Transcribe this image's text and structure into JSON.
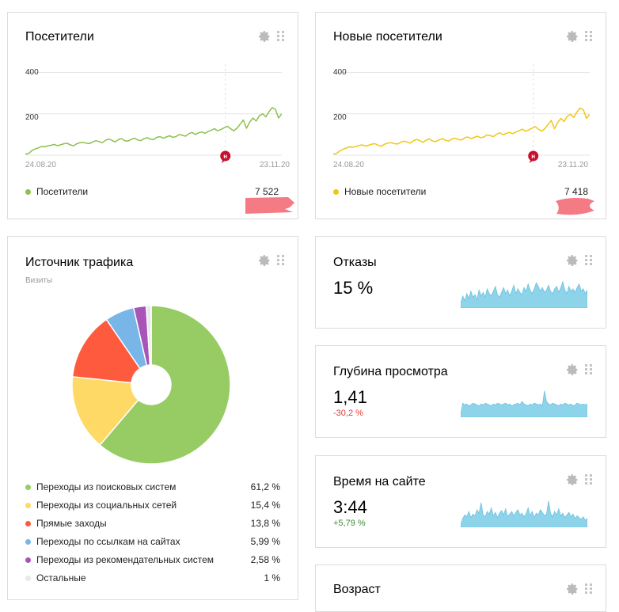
{
  "colors": {
    "green": "#8dc04e",
    "yellow": "#f2c713",
    "sparkline": "#8dd3ea",
    "red_marker": "#c8102e",
    "delta_negative": "#e03c3c",
    "delta_positive": "#3a8d3a",
    "pink_scribble": "#f47a84"
  },
  "icons": {
    "settings": "gear-icon",
    "drag": "drag-handle-icon"
  },
  "visitors": {
    "title": "Посетители",
    "y_ticks": [
      "400",
      "200"
    ],
    "x_start": "24.08.20",
    "x_end": "23.11.20",
    "marker": "н",
    "legend": "Посетители",
    "total": "7 522"
  },
  "new_visitors": {
    "title": "Новые посетители",
    "y_ticks": [
      "400",
      "200"
    ],
    "x_start": "24.08.20",
    "x_end": "23.11.20",
    "marker": "н",
    "legend": "Новые посетители",
    "total": "7 418"
  },
  "traffic": {
    "title": "Источник трафика",
    "subtitle": "Визиты",
    "rows": [
      {
        "label": "Переходы из поисковых систем",
        "value": "61,2 %",
        "color": "#97cc64"
      },
      {
        "label": "Переходы из социальных сетей",
        "value": "15,4 %",
        "color": "#ffd966"
      },
      {
        "label": "Прямые заходы",
        "value": "13,8 %",
        "color": "#fd5a3e"
      },
      {
        "label": "Переходы по ссылкам на сайтах",
        "value": "5,99 %",
        "color": "#77b6e7"
      },
      {
        "label": "Переходы из рекомендательных систем",
        "value": "2,58 %",
        "color": "#a955b8"
      },
      {
        "label": "Остальные",
        "value": "1 %",
        "color": "#e9e9e9"
      }
    ]
  },
  "bounce": {
    "title": "Отказы",
    "value": "15 %"
  },
  "depth": {
    "title": "Глубина просмотра",
    "value": "1,41",
    "delta": "-30,2 %"
  },
  "time": {
    "title": "Время на сайте",
    "value": "3:44",
    "delta": "+5,79 %"
  },
  "age": {
    "title": "Возраст"
  },
  "chart_data": [
    {
      "type": "line",
      "title": "Посетители",
      "series": [
        {
          "name": "Посетители",
          "values": [
            5,
            8,
            22,
            30,
            35,
            42,
            40,
            45,
            48,
            52,
            46,
            50,
            55,
            58,
            50,
            45,
            55,
            60,
            62,
            58,
            56,
            64,
            70,
            66,
            60,
            72,
            78,
            72,
            64,
            75,
            80,
            70,
            68,
            76,
            82,
            74,
            70,
            80,
            84,
            78,
            75,
            86,
            90,
            82,
            88,
            94,
            86,
            90,
            100,
            96,
            92,
            104,
            110,
            100,
            108,
            112,
            106,
            114,
            120,
            128,
            118,
            124,
            132,
            140,
            128,
            118,
            130,
            150,
            170,
            130,
            160,
            180,
            165,
            190,
            200,
            185,
            210,
            230,
            222,
            180,
            200
          ]
        }
      ],
      "ylim": [
        0,
        440
      ],
      "y_ticks": [
        200,
        400
      ],
      "x_start": "24.08.20",
      "x_end": "23.11.20"
    },
    {
      "type": "line",
      "title": "Новые посетители",
      "series": [
        {
          "name": "Новые посетители",
          "values": [
            5,
            8,
            20,
            28,
            34,
            40,
            38,
            43,
            46,
            50,
            44,
            48,
            53,
            56,
            48,
            43,
            53,
            58,
            60,
            56,
            54,
            62,
            68,
            64,
            58,
            70,
            76,
            70,
            62,
            73,
            78,
            68,
            66,
            74,
            80,
            72,
            68,
            78,
            82,
            76,
            73,
            84,
            88,
            80,
            86,
            92,
            84,
            88,
            98,
            94,
            90,
            102,
            108,
            98,
            106,
            110,
            104,
            112,
            118,
            126,
            116,
            122,
            130,
            138,
            126,
            116,
            128,
            148,
            168,
            128,
            158,
            178,
            163,
            188,
            198,
            183,
            208,
            228,
            220,
            178,
            198
          ]
        }
      ],
      "ylim": [
        0,
        440
      ],
      "y_ticks": [
        200,
        400
      ],
      "x_start": "24.08.20",
      "x_end": "23.11.20"
    },
    {
      "type": "pie",
      "title": "Источник трафика",
      "subtitle": "Визиты",
      "categories": [
        "Переходы из поисковых систем",
        "Переходы из социальных сетей",
        "Прямые заходы",
        "Переходы по ссылкам на сайтах",
        "Переходы из рекомендательных систем",
        "Остальные"
      ],
      "values": [
        61.2,
        15.4,
        13.8,
        5.99,
        2.58,
        1
      ]
    },
    {
      "type": "area",
      "title": "Отказы",
      "series": [
        {
          "values": [
            4,
            10,
            6,
            12,
            8,
            14,
            9,
            11,
            7,
            15,
            10,
            13,
            9,
            16,
            12,
            10,
            14,
            18,
            11,
            9,
            13,
            17,
            12,
            15,
            10,
            14,
            19,
            12,
            16,
            13,
            11,
            17,
            14,
            20,
            15,
            12,
            16,
            21,
            18,
            14,
            17,
            13,
            15,
            19,
            14,
            12,
            16,
            18,
            13,
            17,
            22,
            15,
            12,
            18,
            14,
            16,
            13,
            17,
            20,
            14,
            16,
            12,
            15
          ]
        }
      ]
    },
    {
      "type": "area",
      "title": "Глубина просмотра",
      "series": [
        {
          "values": [
            3,
            16,
            14,
            15,
            13,
            14,
            16,
            15,
            14,
            13,
            15,
            14,
            16,
            15,
            14,
            13,
            15,
            14,
            16,
            15,
            14,
            15,
            16,
            14,
            15,
            13,
            14,
            15,
            16,
            14,
            18,
            15,
            14,
            13,
            15,
            14,
            16,
            15,
            14,
            15,
            13,
            30,
            18,
            15,
            14,
            16,
            15,
            14,
            13,
            15,
            14,
            16,
            15,
            14,
            15,
            13,
            14,
            16,
            15,
            14,
            15,
            14,
            15
          ]
        }
      ]
    },
    {
      "type": "area",
      "title": "Время на сайте",
      "series": [
        {
          "values": [
            3,
            10,
            14,
            12,
            18,
            11,
            15,
            13,
            20,
            16,
            28,
            14,
            12,
            18,
            15,
            22,
            13,
            17,
            11,
            16,
            19,
            14,
            21,
            12,
            15,
            18,
            13,
            17,
            20,
            14,
            16,
            12,
            15,
            22,
            13,
            18,
            11,
            16,
            14,
            20,
            17,
            13,
            15,
            30,
            16,
            12,
            18,
            14,
            21,
            13,
            16,
            11,
            14,
            17,
            12,
            15,
            10,
            13,
            11,
            9,
            12,
            8,
            10
          ]
        }
      ]
    }
  ]
}
